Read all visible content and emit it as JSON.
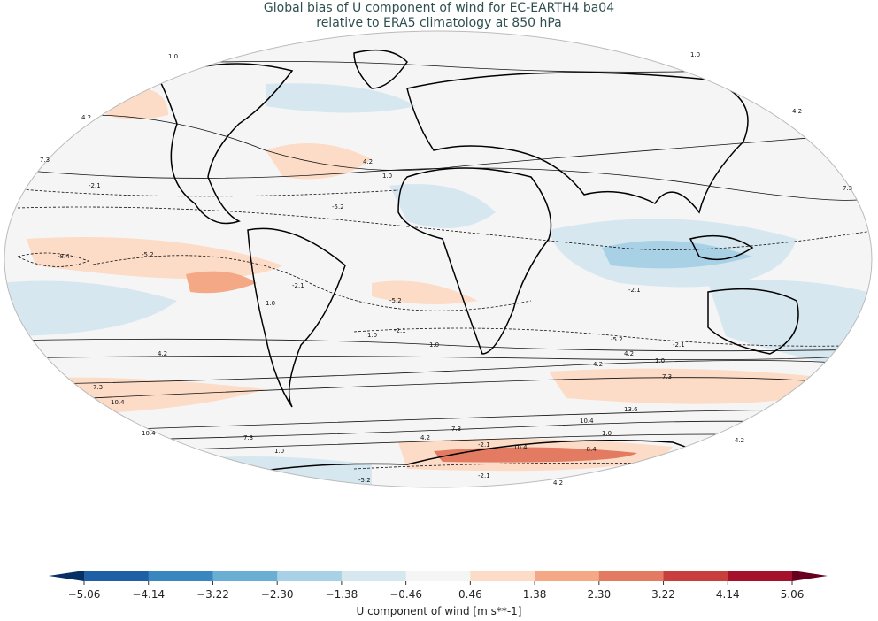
{
  "title": {
    "line1": "Global bias of U component of wind for EC-EARTH4 ba04",
    "line2": "relative to ERA5 climatology at 850 hPa"
  },
  "map": {
    "projection": "Robinson",
    "contour_labels": [
      "1.0",
      "4.2",
      "7.3",
      "4.2",
      "1.0",
      "-2.1",
      "-5.2",
      "-8.4",
      "-5.2",
      "-2.1",
      "1.0",
      "-5.2",
      "-2.1",
      "1.0",
      "4.2",
      "7.3",
      "10.4",
      "10.4",
      "7.3",
      "4.2",
      "1.0",
      "-2.1",
      "-5.2",
      "-2.1",
      "1.0",
      "4.2",
      "7.3",
      "10.4",
      "13.6",
      "10.4",
      "7.3",
      "4.2",
      "-2.1",
      "1.0",
      "-8.4",
      "-2.1",
      "4.2",
      "-5.2",
      "1.0",
      "4.2",
      "7.3",
      "1.0",
      "4.2"
    ]
  },
  "colorbar": {
    "label": "U component of wind [m s**-1]",
    "ticks": [
      "−5.06",
      "−4.14",
      "−3.22",
      "−2.30",
      "−1.38",
      "−0.46",
      "0.46",
      "1.38",
      "2.30",
      "3.22",
      "4.14",
      "5.06"
    ],
    "colors": [
      "#1f5fa6",
      "#3a87c0",
      "#6aaed3",
      "#a8d1e6",
      "#d6e7f0",
      "#f5f5f5",
      "#fcdbc7",
      "#f4a886",
      "#e27b62",
      "#c73e3d",
      "#a5112b"
    ],
    "extend_low_color": "#053061",
    "extend_high_color": "#67001f"
  }
}
